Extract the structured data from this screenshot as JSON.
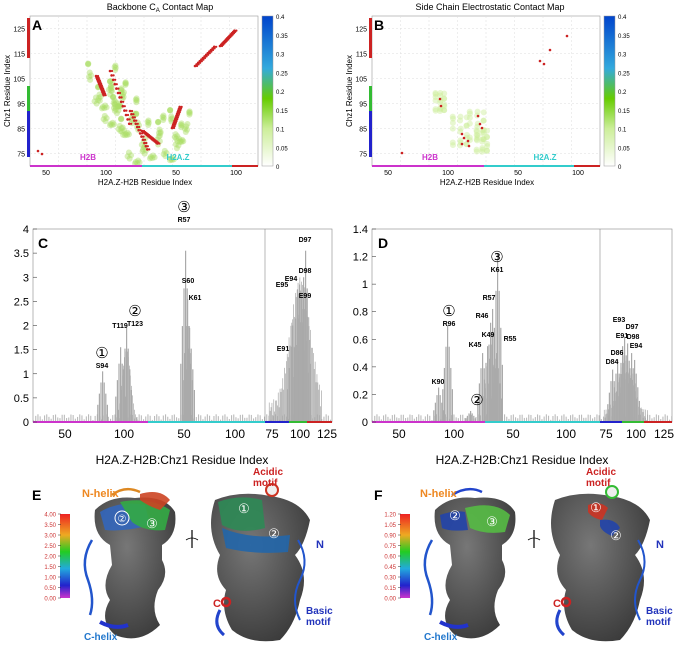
{
  "panels": {
    "A": {
      "letter": "A",
      "title": "Backbone C",
      "title_sub": "A",
      "title_rest": " Contact Map"
    },
    "B": {
      "letter": "B",
      "title": "Side Chain Electrostatic Contact Map"
    },
    "C": {
      "letter": "C"
    },
    "D": {
      "letter": "D"
    },
    "E": {
      "letter": "E"
    },
    "F": {
      "letter": "F"
    }
  },
  "colors": {
    "h2b": "#cc33cc",
    "h2az": "#33cccc",
    "chz_red": "#cc2222",
    "chz_green": "#33bb33",
    "chz_blue": "#2222cc",
    "bar": "#aaaaaa",
    "contact": "#cc2222",
    "surface": "#555555"
  },
  "chart_data": [
    {
      "id": "A",
      "type": "heatmap",
      "title": "Backbone CA Contact Map",
      "xlabel": "H2A.Z-H2B Residue Index",
      "ylabel": "Chz1 Residue Index",
      "x_ticks": [
        "50",
        "100",
        "50",
        "100"
      ],
      "y_ticks": [
        "75",
        "85",
        "95",
        "105",
        "115",
        "125"
      ],
      "ylim": [
        70,
        130
      ],
      "region_labels": [
        "H2B",
        "H2A.Z"
      ],
      "colorbar": {
        "ticks": [
          "0",
          "0.05",
          "0.1",
          "0.15",
          "0.2",
          "0.25",
          "0.3",
          "0.35",
          "0.4"
        ],
        "min": 0,
        "max": 0.4
      },
      "grid": true
    },
    {
      "id": "B",
      "type": "heatmap",
      "title": "Side Chain Electrostatic Contact Map",
      "xlabel": "H2A.Z-H2B Residue Index",
      "ylabel": "Chz1 Residue Index",
      "x_ticks": [
        "50",
        "100",
        "50",
        "100"
      ],
      "y_ticks": [
        "75",
        "85",
        "95",
        "105",
        "115",
        "125"
      ],
      "ylim": [
        70,
        130
      ],
      "region_labels": [
        "H2B",
        "H2A.Z"
      ],
      "colorbar": {
        "ticks": [
          "0",
          "0.05",
          "0.1",
          "0.15",
          "0.2",
          "0.25",
          "0.3",
          "0.35",
          "0.4"
        ],
        "min": 0,
        "max": 0.4
      },
      "grid": true
    },
    {
      "id": "C",
      "type": "bar",
      "xlabel": "H2A.Z-H2B:Chz1 Residue Index",
      "x_ticks": [
        "50",
        "75",
        "100",
        "50",
        "75",
        "100",
        "75",
        "100",
        "125"
      ],
      "y_ticks": [
        "0",
        "0.5",
        "1",
        "1.5",
        "2",
        "2.5",
        "3",
        "3.5",
        "4"
      ],
      "ylim": [
        0,
        4
      ],
      "peaks": [
        {
          "label": "S94",
          "value": 1.05,
          "marker": "①"
        },
        {
          "label": "T119",
          "value": 1.55
        },
        {
          "label": "T123",
          "value": 1.95,
          "marker": "②"
        },
        {
          "label": "R57",
          "value": 3.55,
          "marker": "③"
        },
        {
          "label": "S60",
          "value": 2.55
        },
        {
          "label": "K61",
          "value": 1.95
        },
        {
          "label": "E91",
          "value": 2.0
        },
        {
          "label": "E95",
          "value": 2.75
        },
        {
          "label": "E94",
          "value": 2.85
        },
        {
          "label": "E99",
          "value": 2.65
        },
        {
          "label": "D98",
          "value": 3.0
        },
        {
          "label": "D97",
          "value": 3.55
        }
      ]
    },
    {
      "id": "D",
      "type": "bar",
      "xlabel": "H2A.Z-H2B:Chz1 Residue Index",
      "x_ticks": [
        "50",
        "100",
        "50",
        "75",
        "100",
        "75",
        "100",
        "125"
      ],
      "y_ticks": [
        "0",
        "0.2",
        "0.4",
        "0.6",
        "0.8",
        "1",
        "1.2",
        "1.4"
      ],
      "ylim": [
        0,
        1.4
      ],
      "peaks": [
        {
          "label": "K90",
          "value": 0.25
        },
        {
          "label": "R96",
          "value": 0.7,
          "marker": "①"
        },
        {
          "label": "",
          "value": 0.08,
          "marker": "②"
        },
        {
          "label": "K45",
          "value": 0.5
        },
        {
          "label": "K49",
          "value": 0.55
        },
        {
          "label": "R46",
          "value": 0.72
        },
        {
          "label": "R57",
          "value": 0.82
        },
        {
          "label": "R55",
          "value": 0.5
        },
        {
          "label": "K61",
          "value": 1.22,
          "marker": "③"
        },
        {
          "label": "D84",
          "value": 0.38
        },
        {
          "label": "D86",
          "value": 0.45
        },
        {
          "label": "E91",
          "value": 0.55
        },
        {
          "label": "E93",
          "value": 0.62
        },
        {
          "label": "D97",
          "value": 0.57
        },
        {
          "label": "D98",
          "value": 0.5
        },
        {
          "label": "E94",
          "value": 0.45
        }
      ]
    }
  ],
  "structures": {
    "E": {
      "scale_ticks": [
        "4.00",
        "3.50",
        "3.00",
        "2.50",
        "2.00",
        "1.50",
        "1.00",
        "0.50",
        "0.00"
      ],
      "labels": {
        "nhelix": "N-helix",
        "chelix": "C-helix",
        "acidic": "Acidic\nmotif",
        "acidic1": "Acidic",
        "acidic2": "motif",
        "n": "N",
        "c": "C",
        "basic1": "Basic",
        "basic2": "motif"
      },
      "markers": [
        "②",
        "③",
        "①",
        "②"
      ]
    },
    "F": {
      "scale_ticks": [
        "1.20",
        "1.05",
        "0.90",
        "0.75",
        "0.60",
        "0.45",
        "0.30",
        "0.15",
        "0.00"
      ],
      "labels": {
        "nhelix": "N-helix",
        "chelix": "C-helix",
        "acidic1": "Acidic",
        "acidic2": "motif",
        "n": "N",
        "c": "C",
        "basic1": "Basic",
        "basic2": "motif"
      },
      "markers": [
        "②",
        "③",
        "①",
        "②"
      ]
    }
  }
}
